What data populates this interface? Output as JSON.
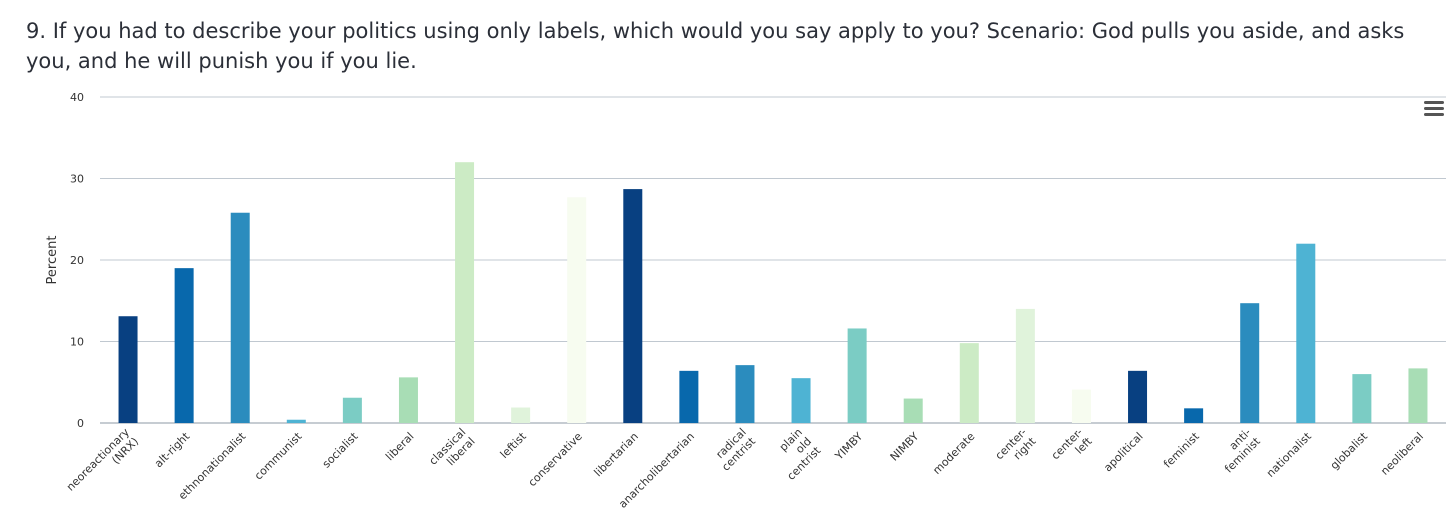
{
  "question": {
    "text": "9. If you had to describe your politics using only labels, which would you say apply to you? Scenario: God pulls you aside, and asks you, and he will punish you if you lie."
  },
  "menu": {
    "icon": "hamburger-menu-icon"
  },
  "chart_data": {
    "type": "bar",
    "title": "",
    "xlabel": "",
    "ylabel": "Percent",
    "ylim": [
      0,
      40
    ],
    "yticks": [
      0,
      10,
      20,
      30,
      40
    ],
    "grid": true,
    "legend": "none",
    "categories": [
      "neoreactionary (NRX)",
      "alt-right",
      "ethnonationalist",
      "communist",
      "socialist",
      "liberal",
      "classical liberal",
      "leftist",
      "conservative",
      "libertarian",
      "anarcholibertarian",
      "radical centrist",
      "plain old centrist",
      "YIMBY",
      "NIMBY",
      "moderate",
      "center-right",
      "center-left",
      "apolitical",
      "feminist",
      "anti-feminist",
      "nationalist",
      "globalist",
      "neoliberal"
    ],
    "values": [
      13.1,
      19.0,
      25.8,
      0.4,
      3.1,
      5.6,
      32.0,
      1.9,
      27.7,
      28.7,
      6.4,
      7.1,
      5.5,
      11.6,
      3.0,
      9.8,
      14.0,
      4.1,
      6.4,
      1.8,
      14.7,
      22.0,
      6.0,
      6.7
    ],
    "colors": [
      "#084081",
      "#0868ac",
      "#2b8cbe",
      "#4eb3d3",
      "#7bccc4",
      "#a8ddb5",
      "#ccebc5",
      "#e0f3db",
      "#f7fcf0"
    ]
  }
}
